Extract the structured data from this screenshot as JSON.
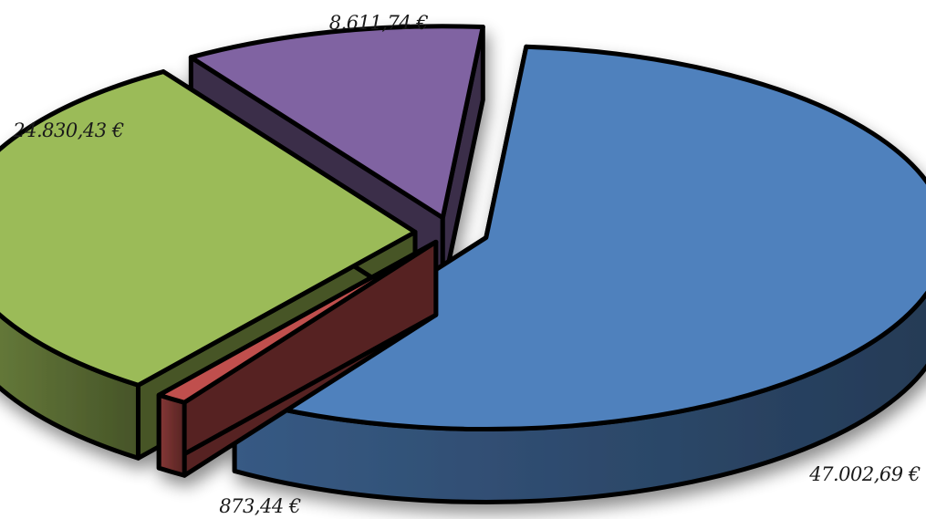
{
  "chart_data": {
    "type": "pie",
    "style": "3d-exploded",
    "slices": [
      {
        "label": "47.002,69 €",
        "value": 47002.69,
        "color": "#4f81bd"
      },
      {
        "label": "873,44 €",
        "value": 873.44,
        "color": "#c0504d"
      },
      {
        "label": "24.830,43 €",
        "value": 24830.43,
        "color": "#9bbb59"
      },
      {
        "label": "8.611,74 €",
        "value": 8611.74,
        "color": "#8064a2"
      }
    ]
  }
}
